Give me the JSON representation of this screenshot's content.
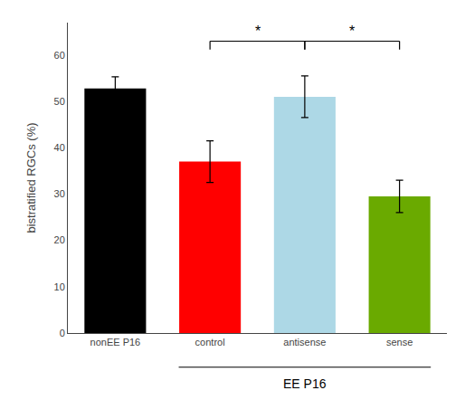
{
  "chart_data": {
    "type": "bar",
    "categories": [
      "nonEE P16",
      "control",
      "antisense",
      "sense"
    ],
    "values": [
      52.8,
      37.0,
      51.0,
      29.5
    ],
    "errors": [
      2.5,
      4.5,
      4.5,
      3.5
    ],
    "colors": [
      "#000000",
      "#ff0000",
      "#add8e6",
      "#6aaa00"
    ],
    "ylabel": "bistratified RGCs (%)",
    "ylim": [
      0,
      67
    ],
    "yticks": [
      0,
      10,
      20,
      30,
      40,
      50,
      60
    ],
    "grid": false,
    "group_label": {
      "text": "EE P16",
      "categories": [
        "control",
        "antisense",
        "sense"
      ]
    },
    "brackets": [
      {
        "from": "control",
        "to": "antisense",
        "y": 63,
        "text": "*"
      },
      {
        "from": "antisense",
        "to": "sense",
        "y": 63,
        "text": "*"
      }
    ]
  }
}
